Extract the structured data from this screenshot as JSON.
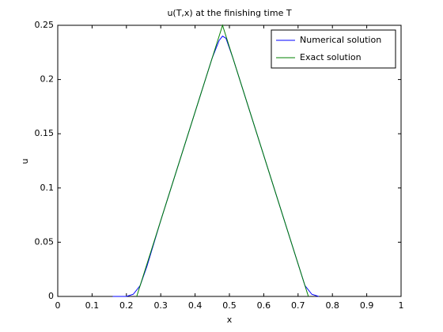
{
  "chart_data": {
    "type": "line",
    "title": "u(T,x) at the finishing time T",
    "x_label": "x",
    "y_label": "u",
    "xlim": [
      0,
      1
    ],
    "xticks": [
      0,
      0.1,
      0.2,
      0.3,
      0.4,
      0.5,
      0.6,
      0.7,
      0.8,
      0.9,
      1
    ],
    "ylim": [
      0,
      0.25
    ],
    "yticks": [
      0,
      0.05,
      0.1,
      0.15,
      0.2,
      0.25
    ],
    "grid": false,
    "legend": "upper right",
    "series": [
      {
        "name": "Numerical solution",
        "color": "#0000ff",
        "x": [
          0.16,
          0.2,
          0.22,
          0.24,
          0.26,
          0.3,
          0.4,
          0.45,
          0.47,
          0.48,
          0.49,
          0.51,
          0.55,
          0.6,
          0.7,
          0.72,
          0.74,
          0.76
        ],
        "values": [
          0,
          0,
          0.002,
          0.01,
          0.028,
          0.07,
          0.17,
          0.22,
          0.236,
          0.24,
          0.238,
          0.22,
          0.18,
          0.13,
          0.03,
          0.01,
          0.002,
          0
        ]
      },
      {
        "name": "Exact solution",
        "color": "#008000",
        "x": [
          0.23,
          0.48,
          0.73
        ],
        "values": [
          0,
          0.25,
          0
        ]
      }
    ]
  }
}
